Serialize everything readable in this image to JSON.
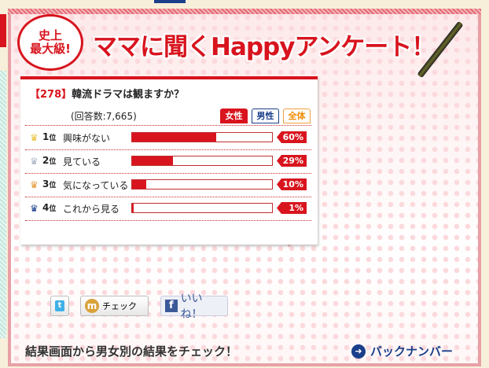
{
  "header": {
    "badge_line1": "史上",
    "badge_line2": "最大級!",
    "title": "ママに聞くHappyアンケート！"
  },
  "survey": {
    "number": "【278】",
    "question": "韓流ドラマは観ますか？",
    "responses": "(回答数:7,665)",
    "tabs": [
      {
        "label": "女性",
        "active": true
      },
      {
        "label": "男性"
      },
      {
        "label": "全体"
      }
    ],
    "results": [
      {
        "rank": "1",
        "rank_suffix": "位",
        "label": "興味がない",
        "percent": 60,
        "percent_label": "60%",
        "crown_color": "#e8c23a"
      },
      {
        "rank": "2",
        "rank_suffix": "位",
        "label": "見ている",
        "percent": 29,
        "percent_label": "29%",
        "crown_color": "#a9b4c4"
      },
      {
        "rank": "3",
        "rank_suffix": "位",
        "label": "気になっている",
        "percent": 10,
        "percent_label": "10%",
        "crown_color": "#e39a3a"
      },
      {
        "rank": "4",
        "rank_suffix": "位",
        "label": "これから見る",
        "percent": 1,
        "percent_label": "1%",
        "crown_color": "#1a3f8a"
      }
    ]
  },
  "social": {
    "twitter_icon": "t",
    "mixi_icon": "m",
    "mixi_label": "チェック",
    "facebook_icon": "f",
    "facebook_label": "いいね！"
  },
  "footer": {
    "note": "結果画面から男女別の結果をチェック！",
    "back_number": "バックナンバー"
  },
  "colors": {
    "accent": "#d8141e",
    "navy": "#1a3f8a"
  }
}
